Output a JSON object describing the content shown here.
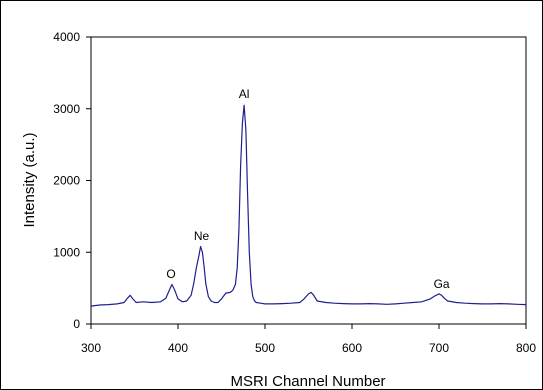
{
  "chart_data": {
    "type": "line",
    "title": "",
    "xlabel": "MSRI Channel Number",
    "ylabel": "Intensity (a.u.)",
    "xlim": [
      300,
      800
    ],
    "ylim": [
      0,
      4000
    ],
    "xticks": [
      300,
      400,
      500,
      600,
      700,
      800
    ],
    "yticks": [
      0,
      1000,
      2000,
      3000,
      4000
    ],
    "xtick_labels": [
      "300",
      "400",
      "500",
      "600",
      "700",
      "800"
    ],
    "ytick_labels": [
      "0",
      "1000",
      "2000",
      "3000",
      "4000"
    ],
    "grid": false,
    "legend": "none",
    "series": [
      {
        "color": "#1f1f8f",
        "x": [
          300,
          310,
          320,
          330,
          338,
          342,
          345,
          348,
          352,
          360,
          370,
          380,
          386,
          390,
          393,
          396,
          400,
          405,
          410,
          415,
          418,
          421,
          424,
          426,
          428,
          430,
          432,
          435,
          438,
          442,
          446,
          450,
          455,
          460,
          463,
          466,
          468,
          470,
          472,
          474,
          476,
          478,
          480,
          482,
          484,
          486,
          488,
          490,
          495,
          500,
          510,
          520,
          530,
          540,
          545,
          550,
          553,
          556,
          560,
          570,
          580,
          590,
          600,
          610,
          620,
          630,
          640,
          650,
          660,
          670,
          680,
          690,
          695,
          700,
          703,
          706,
          710,
          720,
          730,
          740,
          750,
          760,
          770,
          780,
          790,
          800
        ],
        "y": [
          250,
          265,
          270,
          280,
          300,
          360,
          400,
          350,
          300,
          310,
          300,
          310,
          360,
          470,
          550,
          480,
          350,
          310,
          320,
          400,
          560,
          780,
          950,
          1080,
          1000,
          800,
          560,
          380,
          320,
          300,
          300,
          350,
          430,
          440,
          470,
          550,
          780,
          1300,
          2200,
          2800,
          3050,
          2700,
          1800,
          1000,
          550,
          380,
          320,
          300,
          290,
          280,
          280,
          285,
          290,
          300,
          350,
          420,
          440,
          400,
          320,
          300,
          290,
          285,
          280,
          280,
          285,
          280,
          275,
          280,
          290,
          300,
          310,
          350,
          390,
          420,
          400,
          360,
          320,
          300,
          290,
          285,
          280,
          280,
          285,
          280,
          275,
          270
        ]
      }
    ],
    "annotations": [
      {
        "text": "O",
        "x": 392,
        "y": 560
      },
      {
        "text": "Ne",
        "x": 427,
        "y": 1090
      },
      {
        "text": "Al",
        "x": 476,
        "y": 3065
      },
      {
        "text": "Ga",
        "x": 703,
        "y": 420
      }
    ],
    "plot_border": "#000000",
    "frame_border": "#000000",
    "background": "#ffffff"
  }
}
